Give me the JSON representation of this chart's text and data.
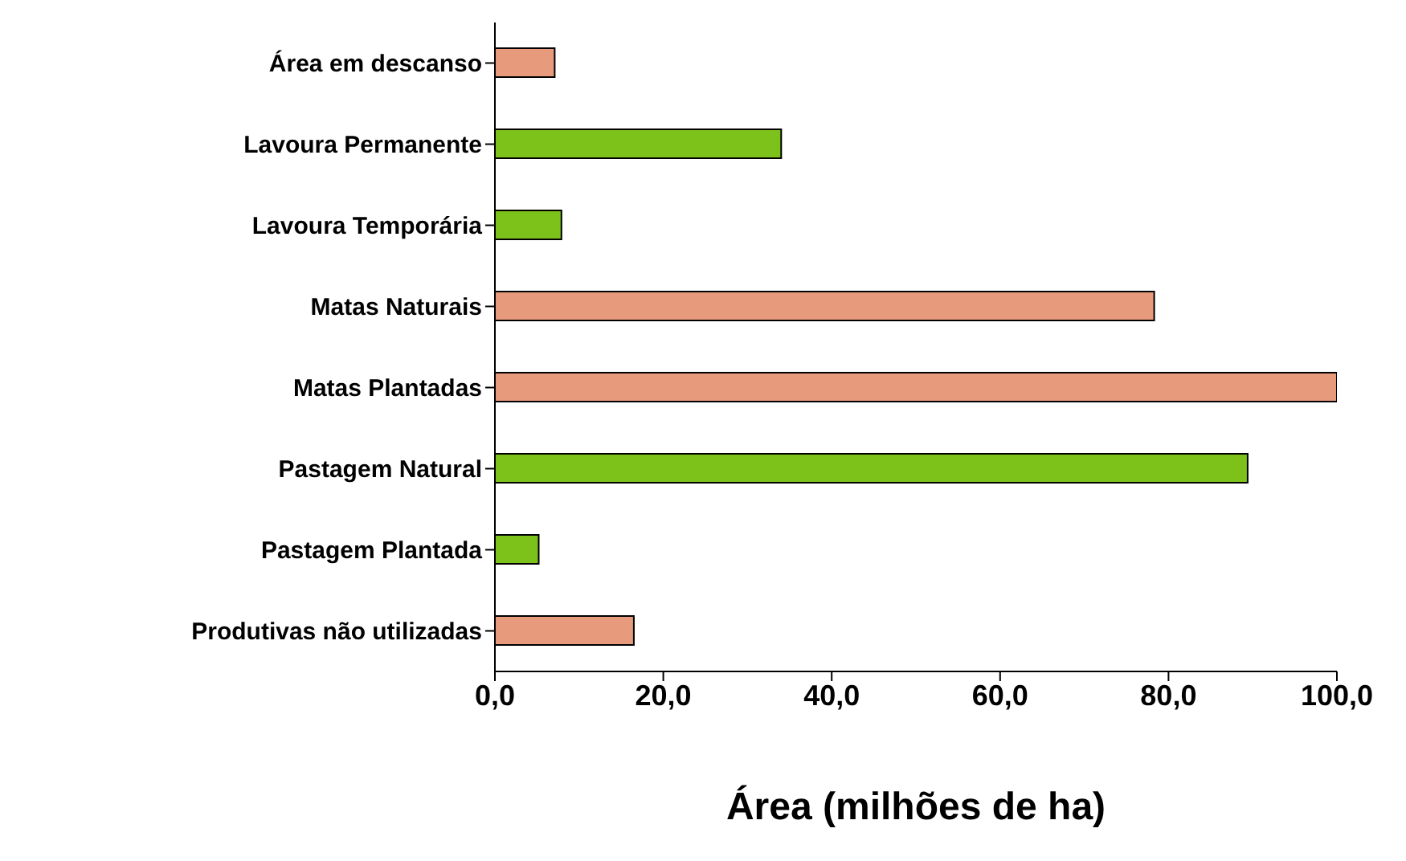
{
  "chart_data": {
    "type": "bar",
    "orientation": "horizontal",
    "xlabel": "Área (milhões de ha)",
    "categories": [
      "Área em descanso",
      "Lavoura Permanente",
      "Lavoura Temporária",
      "Matas Naturais",
      "Matas Plantadas",
      "Pastagem Natural",
      "Pastagem Plantada",
      "Produtivas não utilizadas"
    ],
    "values": [
      7.1,
      34.0,
      7.9,
      78.3,
      100.0,
      89.4,
      5.2,
      16.5
    ],
    "colors": [
      "#e89a7c",
      "#7cc21a",
      "#7cc21a",
      "#e89a7c",
      "#e89a7c",
      "#7cc21a",
      "#7cc21a",
      "#e89a7c"
    ],
    "xlim": [
      0,
      100
    ],
    "xticks": [
      {
        "value": 0,
        "label": "0,0"
      },
      {
        "value": 20,
        "label": "20,0"
      },
      {
        "value": 40,
        "label": "40,0"
      },
      {
        "value": 60,
        "label": "60,0"
      },
      {
        "value": 80,
        "label": "80,0"
      },
      {
        "value": 100,
        "label": "100,0"
      }
    ]
  }
}
